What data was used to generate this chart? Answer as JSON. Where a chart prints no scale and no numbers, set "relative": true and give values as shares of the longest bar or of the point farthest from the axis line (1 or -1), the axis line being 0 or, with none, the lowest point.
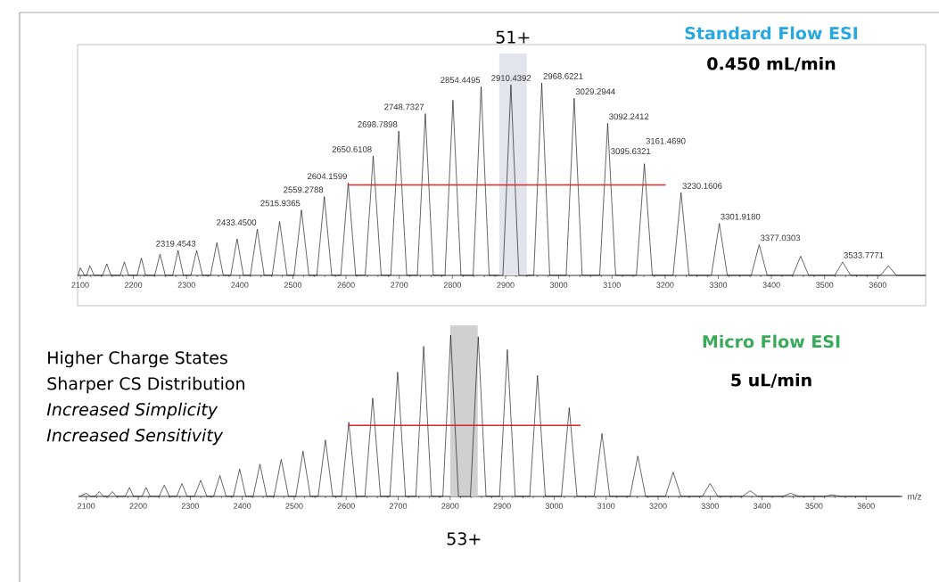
{
  "chart_data": [
    {
      "type": "line",
      "relative": true,
      "title": "Standard Flow ESI",
      "subtitle": "0.450 mL/min",
      "xlim": [
        2095,
        3690
      ],
      "xticks": [
        2100,
        2200,
        2300,
        2400,
        2500,
        2600,
        2700,
        2800,
        2900,
        3000,
        3100,
        3200,
        3300,
        3400,
        3500,
        3600
      ],
      "series": [
        {
          "color": "#000000",
          "x": [
            2096,
            2100,
            2108,
            2112,
            2118,
            2126,
            2142,
            2150,
            2158,
            2175,
            2183,
            2191,
            2207,
            2215,
            2223,
            2240,
            2250,
            2260,
            2274,
            2284,
            2294,
            2308,
            2319,
            2330,
            2345,
            2357,
            2369,
            2383,
            2395,
            2407,
            2420,
            2433,
            2446,
            2461,
            2475,
            2489,
            2502,
            2516,
            2530,
            2545,
            2559,
            2573,
            2590,
            2604,
            2618,
            2636,
            2651,
            2666,
            2684,
            2699,
            2714,
            2734,
            2749,
            2764,
            2786,
            2801,
            2816,
            2839,
            2854,
            2869,
            2895,
            2910,
            2925,
            2953,
            2968,
            2983,
            3014,
            3029,
            3044,
            3077,
            3092,
            3107,
            3146,
            3161,
            3176,
            3215,
            3230,
            3245,
            3287,
            3302,
            3317,
            3362,
            3377,
            3392,
            3440,
            3455,
            3470,
            3519,
            3534,
            3549,
            3605,
            3620,
            3635,
            3690
          ],
          "values": [
            0,
            0.04,
            0,
            0,
            0.05,
            0,
            0,
            0.06,
            0,
            0,
            0.07,
            0,
            0,
            0.09,
            0,
            0,
            0.11,
            0,
            0,
            0.13,
            0,
            0,
            0.13,
            0,
            0,
            0.17,
            0,
            0,
            0.19,
            0,
            0,
            0.24,
            0,
            0,
            0.28,
            0,
            0,
            0.34,
            0,
            0,
            0.41,
            0,
            0,
            0.48,
            0,
            0,
            0.62,
            0,
            0,
            0.75,
            0,
            0,
            0.84,
            0,
            0,
            0.91,
            0,
            0,
            0.98,
            0,
            0,
            0.99,
            0,
            0,
            1.0,
            0,
            0,
            0.92,
            0,
            0,
            0.79,
            0,
            0,
            0.58,
            0,
            0,
            0.43,
            0,
            0,
            0.27,
            0,
            0,
            0.16,
            0,
            0,
            0.1,
            0,
            0,
            0.07,
            0,
            0,
            0.05,
            0,
            0
          ]
        },
        {
          "color": "#d62a2a",
          "x": [
            2604,
            3200
          ],
          "values": [
            0.47,
            0.47
          ]
        }
      ],
      "bands": [
        {
          "axis": "x",
          "from": 2888,
          "to": 2940,
          "label": "51+",
          "color": "#e3e5ee"
        }
      ],
      "annotations": [
        {
          "text": "2319.4543",
          "x": 2319.4543,
          "y": 0.13
        },
        {
          "text": "2433.4500",
          "x": 2433.45,
          "y": 0.24
        },
        {
          "text": "2515.9365",
          "x": 2515.9365,
          "y": 0.34
        },
        {
          "text": "2559.2788",
          "x": 2559.2788,
          "y": 0.41
        },
        {
          "text": "2604.1599",
          "x": 2604.1599,
          "y": 0.48
        },
        {
          "text": "2650.6108",
          "x": 2650.6108,
          "y": 0.62
        },
        {
          "text": "2698.7898",
          "x": 2698.7898,
          "y": 0.75
        },
        {
          "text": "2748.7327",
          "x": 2748.7327,
          "y": 0.84
        },
        {
          "text": "2854.4495",
          "x": 2854.4495,
          "y": 0.98
        },
        {
          "text": "2910.4392",
          "x": 2910.4392,
          "y": 0.99
        },
        {
          "text": "2968.6221",
          "x": 2968.6221,
          "y": 1.0
        },
        {
          "text": "3029.2944",
          "x": 3029.2944,
          "y": 0.92
        },
        {
          "text": "3092.2412",
          "x": 3092.2412,
          "y": 0.79
        },
        {
          "text": "3095.6321",
          "x": 3095.6321,
          "y": 0.61
        },
        {
          "text": "3161.4690",
          "x": 3161.469,
          "y": 0.58
        },
        {
          "text": "3230.1606",
          "x": 3230.1606,
          "y": 0.43
        },
        {
          "text": "3301.9180",
          "x": 3301.918,
          "y": 0.27
        },
        {
          "text": "3377.0303",
          "x": 3377.0303,
          "y": 0.16
        },
        {
          "text": "3533.7771",
          "x": 3533.7771,
          "y": 0.07
        }
      ]
    },
    {
      "type": "line",
      "relative": true,
      "title": "Micro Flow ESI",
      "subtitle": "5 uL/min",
      "xlabel": "m/z",
      "xlim": [
        2085,
        3670
      ],
      "xticks": [
        2100,
        2200,
        2300,
        2400,
        2500,
        2600,
        2700,
        2800,
        2900,
        3000,
        3100,
        3200,
        3300,
        3400,
        3500,
        3600
      ],
      "series": [
        {
          "color": "#000000",
          "x": [
            2088,
            2100,
            2108,
            2117,
            2125,
            2133,
            2142,
            2150,
            2158,
            2175,
            2183,
            2191,
            2207,
            2215,
            2223,
            2240,
            2250,
            2260,
            2274,
            2284,
            2294,
            2308,
            2320,
            2332,
            2345,
            2357,
            2369,
            2383,
            2395,
            2407,
            2421,
            2434,
            2447,
            2461,
            2475,
            2489,
            2503,
            2517,
            2531,
            2546,
            2560,
            2574,
            2591,
            2605,
            2619,
            2636,
            2651,
            2666,
            2684,
            2699,
            2714,
            2734,
            2749,
            2764,
            2786,
            2801,
            2816,
            2839,
            2854,
            2869,
            2895,
            2910,
            2925,
            2953,
            2968,
            2983,
            3014,
            3029,
            3044,
            3077,
            3092,
            3107,
            3146,
            3161,
            3176,
            3214,
            3229,
            3244,
            3285,
            3300,
            3315,
            3362,
            3377,
            3392,
            3440,
            3455,
            3470,
            3520,
            3535,
            3550,
            3665
          ],
          "values": [
            0,
            0.02,
            0,
            0,
            0.03,
            0,
            0,
            0.03,
            0,
            0,
            0.055,
            0,
            0,
            0.055,
            0,
            0,
            0.07,
            0,
            0,
            0.08,
            0,
            0,
            0.1,
            0,
            0,
            0.13,
            0,
            0,
            0.17,
            0,
            0,
            0.2,
            0,
            0,
            0.23,
            0,
            0,
            0.28,
            0,
            0,
            0.35,
            0,
            0,
            0.46,
            0,
            0,
            0.61,
            0,
            0,
            0.77,
            0,
            0,
            0.93,
            0,
            0,
            1.0,
            0,
            0,
            0.99,
            0,
            0,
            0.91,
            0,
            0,
            0.75,
            0,
            0,
            0.55,
            0,
            0,
            0.39,
            0,
            0,
            0.25,
            0,
            0,
            0.15,
            0,
            0,
            0.08,
            0,
            0,
            0.035,
            0,
            0,
            0.02,
            0,
            0,
            0.01,
            0,
            0
          ]
        },
        {
          "color": "#d62a2a",
          "x": [
            2605,
            3050
          ],
          "values": [
            0.44,
            0.44
          ]
        }
      ],
      "bands": [
        {
          "axis": "x",
          "from": 2800,
          "to": 2853,
          "label": "53+",
          "color": "#d0d0d0"
        }
      ],
      "annotations": [
        "Higher Charge States",
        "Sharper CS Distribution",
        "*Increased Simplicity*",
        "*Increased Sensitivity*"
      ]
    }
  ]
}
